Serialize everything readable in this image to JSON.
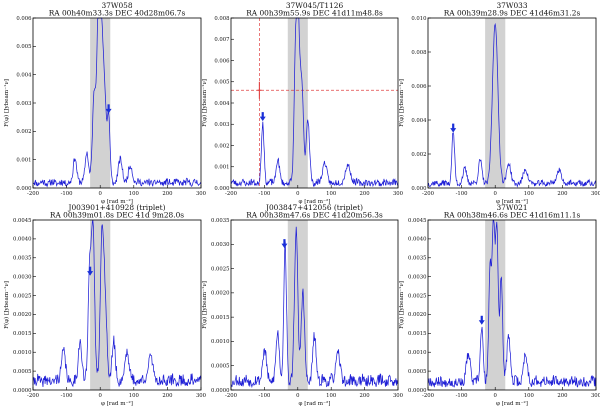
{
  "figure": {
    "colors": {
      "curve": "#1f1fd6",
      "shade": "#d2d2d2",
      "arrow": "#1a2fd8",
      "marker": "#e04040",
      "axis": "#000000"
    }
  },
  "chart_data": [
    {
      "type": "line",
      "title": "37W058",
      "subtitle": "RA  00h40m33.3s  DEC  40d28m06.7s",
      "xlabel": "φ [rad m⁻²]",
      "ylabel": "F(φ) [Jybeam⁻¹ν]",
      "xlim": [
        -200,
        300
      ],
      "ylim": [
        0,
        0.006
      ],
      "xticks": [
        "-200",
        "-100",
        "0",
        "100",
        "200",
        "300"
      ],
      "yticks": [
        "0.000",
        "0.001",
        "0.002",
        "0.003",
        "0.004",
        "0.005",
        "0.006"
      ],
      "shaded_band": [
        -30,
        30
      ],
      "arrow_at": [
        25,
        0.0026
      ],
      "noise": 0.00035,
      "seed": 11,
      "peaks": [
        [
          -5,
          0.0058,
          5
        ],
        [
          5,
          0.005,
          6
        ],
        [
          -18,
          0.0031,
          5
        ],
        [
          25,
          0.0024,
          4
        ],
        [
          15,
          0.0019,
          4
        ],
        [
          -40,
          0.0011,
          5
        ],
        [
          -75,
          0.0009,
          5
        ],
        [
          60,
          0.0008,
          6
        ],
        [
          90,
          0.0006,
          6
        ]
      ]
    },
    {
      "type": "line",
      "title": "37W045/T1126",
      "subtitle": "RA  00h39m55.9s  DEC  41d11m48.8s",
      "xlabel": "φ [rad m⁻²]",
      "ylabel": "F(φ) [Jybeam⁻¹ν]",
      "xlim": [
        -200,
        300
      ],
      "ylim": [
        0,
        0.008
      ],
      "xticks": [
        "-200",
        "-100",
        "0",
        "100",
        "200",
        "300"
      ],
      "yticks": [
        "0.000",
        "0.001",
        "0.002",
        "0.003",
        "0.004",
        "0.005",
        "0.006",
        "0.007",
        "0.008"
      ],
      "shaded_band": [
        -30,
        30
      ],
      "arrow_at": [
        -105,
        0.0031
      ],
      "crosshair": {
        "x": -115,
        "y": 0.0046,
        "hline": 0.0046,
        "vline": -115,
        "xerr": 6,
        "yerr": 0.0004
      },
      "noise": 0.00045,
      "seed": 23,
      "peaks": [
        [
          0,
          0.008,
          5
        ],
        [
          -8,
          0.0042,
          4
        ],
        [
          12,
          0.0045,
          5
        ],
        [
          30,
          0.003,
          5
        ],
        [
          -105,
          0.0028,
          4
        ],
        [
          -60,
          0.0011,
          5
        ],
        [
          80,
          0.001,
          6
        ],
        [
          150,
          0.0008,
          8
        ]
      ]
    },
    {
      "type": "line",
      "title": "37W033",
      "subtitle": "RA  00h39m28.9s  DEC  41d46m31.2s",
      "xlabel": "φ [rad m⁻²]",
      "ylabel": "F(φ) [Jybeam⁻¹ν]",
      "xlim": [
        -200,
        300
      ],
      "ylim": [
        0,
        0.01
      ],
      "xticks": [
        "-200",
        "-100",
        "0",
        "100",
        "200",
        "300"
      ],
      "yticks": [
        "0.000",
        "0.002",
        "0.004",
        "0.006",
        "0.008",
        "0.010"
      ],
      "shaded_band": [
        -30,
        30
      ],
      "arrow_at": [
        -125,
        0.0032
      ],
      "noise": 0.0005,
      "seed": 37,
      "peaks": [
        [
          0,
          0.0095,
          8
        ],
        [
          -125,
          0.003,
          4
        ],
        [
          -45,
          0.0014,
          5
        ],
        [
          40,
          0.0012,
          6
        ],
        [
          90,
          0.0009,
          6
        ],
        [
          -90,
          0.0008,
          6
        ],
        [
          190,
          0.0007,
          8
        ]
      ]
    },
    {
      "type": "line",
      "title": "J003901+410928 (triplet)",
      "subtitle": "RA  00h39m01.8s  DEC  41d 9m28.0s",
      "xlabel": "φ [rad m⁻²]",
      "ylabel": "F(φ) [Jybeam⁻¹ν]",
      "xlim": [
        -200,
        300
      ],
      "ylim": [
        0,
        0.0045
      ],
      "xticks": [
        "-200",
        "-100",
        "0",
        "100",
        "200",
        "300"
      ],
      "yticks": [
        "0.0000",
        "0.0005",
        "0.0010",
        "0.0015",
        "0.0020",
        "0.0025",
        "0.0030",
        "0.0035",
        "0.0040",
        "0.0045"
      ],
      "shaded_band": [
        -30,
        30
      ],
      "arrow_at": [
        -30,
        0.003
      ],
      "noise": 0.00045,
      "seed": 41,
      "peaks": [
        [
          -22,
          0.0041,
          5
        ],
        [
          5,
          0.0038,
          5
        ],
        [
          -32,
          0.0028,
          4
        ],
        [
          15,
          0.002,
          5
        ],
        [
          -60,
          0.0011,
          5
        ],
        [
          40,
          0.001,
          5
        ],
        [
          -110,
          0.0008,
          6
        ],
        [
          80,
          0.0008,
          6
        ],
        [
          150,
          0.0006,
          8
        ]
      ]
    },
    {
      "type": "line",
      "title": "J003847+412056 (triplet)",
      "subtitle": "RA  00h38m47.6s  DEC  41d20m56.3s",
      "xlabel": "φ [rad m⁻²]",
      "ylabel": "F(φ) [Jybeam⁻¹ν]",
      "xlim": [
        -200,
        300
      ],
      "ylim": [
        0,
        0.0035
      ],
      "xticks": [
        "-200",
        "-100",
        "0",
        "100",
        "200",
        "300"
      ],
      "yticks": [
        "0.0000",
        "0.0005",
        "0.0010",
        "0.0015",
        "0.0020",
        "0.0025",
        "0.0030",
        "0.0035"
      ],
      "shaded_band": [
        -30,
        30
      ],
      "arrow_at": [
        -40,
        0.0029
      ],
      "noise": 0.00035,
      "seed": 53,
      "peaks": [
        [
          -38,
          0.0028,
          4
        ],
        [
          -5,
          0.0031,
          5
        ],
        [
          15,
          0.0018,
          5
        ],
        [
          -60,
          0.001,
          5
        ],
        [
          50,
          0.0009,
          5
        ],
        [
          -100,
          0.0006,
          6
        ],
        [
          120,
          0.0006,
          6
        ]
      ]
    },
    {
      "type": "line",
      "title": "37W021",
      "subtitle": "RA  00h38m46.6s  DEC  41d16m11.1s",
      "xlabel": "φ [rad m⁻²]",
      "ylabel": "F(φ) [Jybeam⁻¹ν]",
      "xlim": [
        -200,
        300
      ],
      "ylim": [
        0,
        0.0045
      ],
      "xticks": [
        "-200",
        "-100",
        "0",
        "100",
        "200",
        "300"
      ],
      "yticks": [
        "0.0000",
        "0.0005",
        "0.0010",
        "0.0015",
        "0.0020",
        "0.0025",
        "0.0030",
        "0.0035",
        "0.0040",
        "0.0045"
      ],
      "shaded_band": [
        -30,
        30
      ],
      "arrow_at": [
        -40,
        0.0017
      ],
      "noise": 0.0004,
      "seed": 67,
      "peaks": [
        [
          -5,
          0.0042,
          4
        ],
        [
          5,
          0.0039,
          4
        ],
        [
          -15,
          0.003,
          4
        ],
        [
          18,
          0.0029,
          4
        ],
        [
          -40,
          0.0015,
          4
        ],
        [
          40,
          0.0012,
          5
        ],
        [
          -80,
          0.0007,
          6
        ],
        [
          90,
          0.0007,
          6
        ]
      ]
    }
  ]
}
